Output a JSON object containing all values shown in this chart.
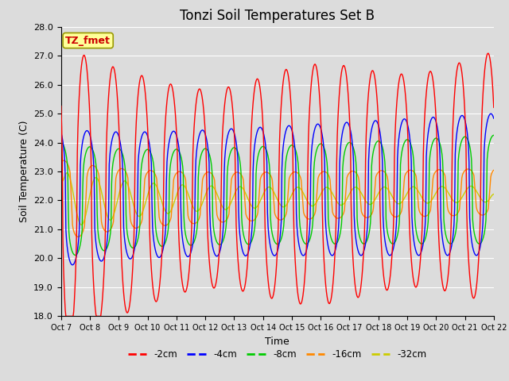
{
  "title": "Tonzi Soil Temperatures Set B",
  "xlabel": "Time",
  "ylabel": "Soil Temperature (C)",
  "ylim": [
    18.0,
    28.0
  ],
  "yticks": [
    18.0,
    19.0,
    20.0,
    21.0,
    22.0,
    23.0,
    24.0,
    25.0,
    26.0,
    27.0,
    28.0
  ],
  "xtick_labels": [
    "Oct 7",
    "Oct 8",
    "Oct 9",
    "Oct 10",
    "Oct 11",
    "Oct 12",
    "Oct 13",
    "Oct 14",
    "Oct 15",
    "Oct 16",
    "Oct 17",
    "Oct 18",
    "Oct 19",
    "Oct 20",
    "Oct 21",
    "Oct 22"
  ],
  "colors": {
    "-2cm": "#FF0000",
    "-4cm": "#0000FF",
    "-8cm": "#00CC00",
    "-16cm": "#FF8800",
    "-32cm": "#CCCC00"
  },
  "legend_labels": [
    "-2cm",
    "-4cm",
    "-8cm",
    "-16cm",
    "-32cm"
  ],
  "annotation_text": "TZ_fmet",
  "annotation_bg": "#FFFF99",
  "annotation_border": "#999900",
  "annotation_text_color": "#CC0000",
  "plot_bg": "#DCDCDC",
  "title_fontsize": 12,
  "axis_label_fontsize": 9,
  "tick_fontsize": 8
}
